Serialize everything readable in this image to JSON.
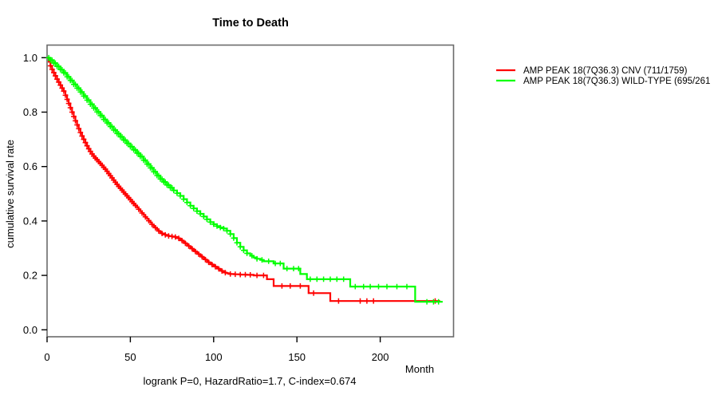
{
  "chart_data": {
    "type": "line",
    "subtype": "kaplan-meier-step",
    "title": "Time to Death",
    "subtitle": "logrank P=0, HazardRatio=1.7, C-index=0.674",
    "xlabel": "Month",
    "ylabel": "cumulative survival rate",
    "xlim": [
      0,
      244
    ],
    "ylim": [
      0,
      1
    ],
    "x_ticks": [
      0,
      50,
      100,
      150,
      200
    ],
    "y_ticks": [
      "0.0",
      "0.2",
      "0.4",
      "0.6",
      "0.8",
      "1.0"
    ],
    "grid": false,
    "legend_position": "top-right-outside",
    "axis_color": "#000000",
    "box_color": "#6b6b6b",
    "series": [
      {
        "name": "AMP PEAK 18(7Q36.3) CNV (711/1759)",
        "color": "#ff0000",
        "points": [
          [
            0,
            1.0
          ],
          [
            1,
            0.985
          ],
          [
            2,
            0.97
          ],
          [
            3,
            0.957
          ],
          [
            4,
            0.945
          ],
          [
            5,
            0.933
          ],
          [
            6,
            0.921
          ],
          [
            7,
            0.91
          ],
          [
            8,
            0.899
          ],
          [
            9,
            0.888
          ],
          [
            10,
            0.877
          ],
          [
            11,
            0.862
          ],
          [
            12,
            0.847
          ],
          [
            13,
            0.832
          ],
          [
            14,
            0.816
          ],
          [
            15,
            0.8
          ],
          [
            16,
            0.784
          ],
          [
            17,
            0.768
          ],
          [
            18,
            0.753
          ],
          [
            19,
            0.739
          ],
          [
            20,
            0.725
          ],
          [
            21,
            0.712
          ],
          [
            22,
            0.7
          ],
          [
            23,
            0.688
          ],
          [
            24,
            0.676
          ],
          [
            25,
            0.665
          ],
          [
            26,
            0.655
          ],
          [
            27,
            0.646
          ],
          [
            28,
            0.638
          ],
          [
            29,
            0.631
          ],
          [
            30,
            0.625
          ],
          [
            31,
            0.618
          ],
          [
            32,
            0.611
          ],
          [
            33,
            0.604
          ],
          [
            34,
            0.597
          ],
          [
            35,
            0.59
          ],
          [
            36,
            0.582
          ],
          [
            37,
            0.574
          ],
          [
            38,
            0.566
          ],
          [
            39,
            0.558
          ],
          [
            40,
            0.55
          ],
          [
            41,
            0.542
          ],
          [
            42,
            0.534
          ],
          [
            43,
            0.527
          ],
          [
            44,
            0.52
          ],
          [
            45,
            0.513
          ],
          [
            46,
            0.506
          ],
          [
            47,
            0.499
          ],
          [
            48,
            0.492
          ],
          [
            49,
            0.485
          ],
          [
            50,
            0.478
          ],
          [
            51,
            0.471
          ],
          [
            52,
            0.464
          ],
          [
            53,
            0.457
          ],
          [
            54,
            0.45
          ],
          [
            55,
            0.443
          ],
          [
            56,
            0.436
          ],
          [
            57,
            0.429
          ],
          [
            58,
            0.422
          ],
          [
            59,
            0.415
          ],
          [
            60,
            0.408
          ],
          [
            61,
            0.401
          ],
          [
            62,
            0.394
          ],
          [
            63,
            0.387
          ],
          [
            64,
            0.381
          ],
          [
            65,
            0.375
          ],
          [
            66,
            0.369
          ],
          [
            67,
            0.363
          ],
          [
            68,
            0.358
          ],
          [
            69,
            0.354
          ],
          [
            70,
            0.351
          ],
          [
            71,
            0.349
          ],
          [
            72,
            0.347
          ],
          [
            73,
            0.345
          ],
          [
            74,
            0.344
          ],
          [
            75,
            0.343
          ],
          [
            76,
            0.342
          ],
          [
            77,
            0.341
          ],
          [
            78,
            0.339
          ],
          [
            79,
            0.336
          ],
          [
            80,
            0.332
          ],
          [
            81,
            0.328
          ],
          [
            82,
            0.323
          ],
          [
            83,
            0.318
          ],
          [
            84,
            0.313
          ],
          [
            85,
            0.308
          ],
          [
            86,
            0.303
          ],
          [
            87,
            0.298
          ],
          [
            88,
            0.293
          ],
          [
            89,
            0.288
          ],
          [
            90,
            0.283
          ],
          [
            91,
            0.278
          ],
          [
            92,
            0.273
          ],
          [
            93,
            0.268
          ],
          [
            94,
            0.263
          ],
          [
            95,
            0.258
          ],
          [
            96,
            0.253
          ],
          [
            97,
            0.248
          ],
          [
            98,
            0.244
          ],
          [
            99,
            0.24
          ],
          [
            100,
            0.236
          ],
          [
            101,
            0.232
          ],
          [
            102,
            0.228
          ],
          [
            103,
            0.224
          ],
          [
            104,
            0.22
          ],
          [
            105,
            0.216
          ],
          [
            106,
            0.213
          ],
          [
            107,
            0.21
          ],
          [
            108,
            0.208
          ],
          [
            109,
            0.206
          ],
          [
            110,
            0.205
          ],
          [
            112,
            0.204
          ],
          [
            116,
            0.203
          ],
          [
            120,
            0.202
          ],
          [
            124,
            0.2
          ],
          [
            132,
            0.186
          ],
          [
            136,
            0.161
          ],
          [
            157,
            0.135
          ],
          [
            170,
            0.106
          ],
          [
            236,
            0.106
          ]
        ],
        "censor_months": [
          2,
          3,
          4,
          5,
          6,
          7,
          8,
          9,
          10,
          11,
          12,
          13,
          14,
          15,
          16,
          17,
          18,
          19,
          20,
          21,
          22,
          23,
          24,
          25,
          26,
          27,
          28,
          29,
          30,
          31,
          32,
          33,
          34,
          35,
          36,
          37,
          38,
          39,
          40,
          41,
          42,
          43,
          44,
          45,
          46,
          47,
          48,
          49,
          50,
          51,
          52,
          53,
          55,
          57,
          59,
          61,
          63,
          65,
          67,
          69,
          71,
          73,
          75,
          77,
          79,
          81,
          83,
          85,
          87,
          89,
          91,
          93,
          95,
          97,
          99,
          101,
          103,
          105,
          107,
          110,
          113,
          116,
          119,
          122,
          126,
          130,
          141,
          146,
          152,
          160,
          175,
          188,
          192,
          196,
          233
        ]
      },
      {
        "name": "AMP PEAK 18(7Q36.3) WILD-TYPE (695/261",
        "color": "#00ff00",
        "points": [
          [
            0,
            1.0
          ],
          [
            2,
            0.991
          ],
          [
            4,
            0.98
          ],
          [
            6,
            0.968
          ],
          [
            8,
            0.956
          ],
          [
            10,
            0.944
          ],
          [
            12,
            0.93
          ],
          [
            14,
            0.916
          ],
          [
            16,
            0.902
          ],
          [
            18,
            0.888
          ],
          [
            20,
            0.874
          ],
          [
            22,
            0.859
          ],
          [
            24,
            0.844
          ],
          [
            26,
            0.829
          ],
          [
            28,
            0.815
          ],
          [
            30,
            0.801
          ],
          [
            32,
            0.787
          ],
          [
            34,
            0.773
          ],
          [
            36,
            0.76
          ],
          [
            38,
            0.747
          ],
          [
            40,
            0.734
          ],
          [
            42,
            0.721
          ],
          [
            44,
            0.709
          ],
          [
            46,
            0.697
          ],
          [
            48,
            0.685
          ],
          [
            50,
            0.673
          ],
          [
            52,
            0.661
          ],
          [
            54,
            0.649
          ],
          [
            56,
            0.637
          ],
          [
            58,
            0.623
          ],
          [
            60,
            0.609
          ],
          [
            62,
            0.595
          ],
          [
            64,
            0.581
          ],
          [
            66,
            0.567
          ],
          [
            68,
            0.554
          ],
          [
            70,
            0.543
          ],
          [
            72,
            0.532
          ],
          [
            74,
            0.522
          ],
          [
            76,
            0.512
          ],
          [
            78,
            0.502
          ],
          [
            80,
            0.492
          ],
          [
            82,
            0.48
          ],
          [
            84,
            0.468
          ],
          [
            86,
            0.456
          ],
          [
            88,
            0.446
          ],
          [
            90,
            0.436
          ],
          [
            92,
            0.426
          ],
          [
            94,
            0.416
          ],
          [
            96,
            0.406
          ],
          [
            98,
            0.396
          ],
          [
            100,
            0.388
          ],
          [
            102,
            0.381
          ],
          [
            104,
            0.376
          ],
          [
            106,
            0.372
          ],
          [
            108,
            0.364
          ],
          [
            110,
            0.352
          ],
          [
            112,
            0.337
          ],
          [
            114,
            0.32
          ],
          [
            116,
            0.305
          ],
          [
            118,
            0.292
          ],
          [
            120,
            0.281
          ],
          [
            122,
            0.272
          ],
          [
            124,
            0.266
          ],
          [
            126,
            0.261
          ],
          [
            128,
            0.257
          ],
          [
            130,
            0.252
          ],
          [
            136,
            0.244
          ],
          [
            142,
            0.225
          ],
          [
            152,
            0.205
          ],
          [
            156,
            0.186
          ],
          [
            182,
            0.159
          ],
          [
            221,
            0.103
          ],
          [
            237.5,
            0.103
          ]
        ],
        "censor_months": [
          1,
          2,
          3,
          4,
          5,
          6,
          7,
          8,
          9,
          10,
          11,
          12,
          13,
          14,
          15,
          16,
          17,
          18,
          19,
          20,
          21,
          22,
          23,
          24,
          25,
          26,
          27,
          28,
          29,
          30,
          31,
          32,
          33,
          34,
          35,
          36,
          37,
          38,
          39,
          40,
          41,
          42,
          43,
          44,
          45,
          46,
          47,
          48,
          49,
          50,
          51,
          52,
          53,
          54,
          55,
          56,
          57,
          58,
          59,
          60,
          61,
          62,
          63,
          64,
          65,
          66,
          67,
          68,
          69,
          70,
          71,
          72,
          73,
          74,
          75,
          76,
          78,
          80,
          82,
          84,
          86,
          88,
          90,
          92,
          94,
          96,
          98,
          100,
          102,
          104,
          106,
          108,
          110,
          112,
          114,
          116,
          118,
          120,
          123,
          126,
          129,
          133,
          137,
          140,
          144,
          148,
          151,
          158,
          162,
          166,
          170,
          174,
          178,
          185,
          190,
          194,
          199,
          204,
          210,
          216,
          228,
          232,
          235
        ]
      }
    ]
  }
}
